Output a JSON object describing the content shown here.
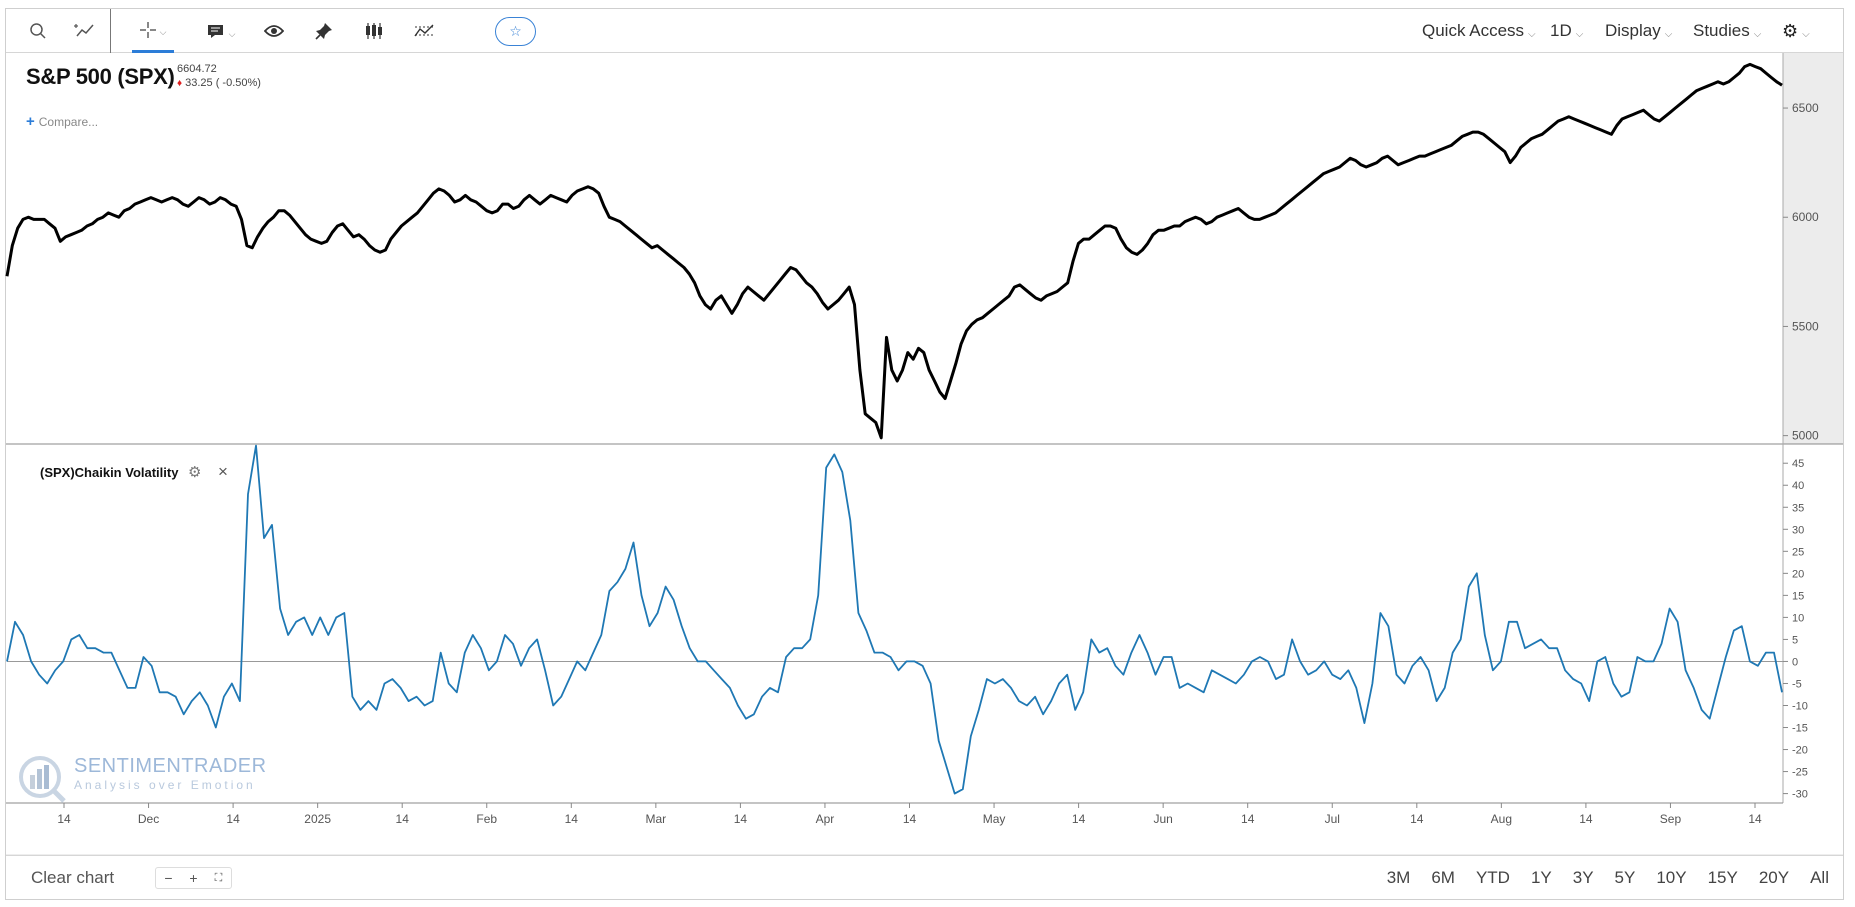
{
  "toolbar": {
    "tools": [
      {
        "name": "search-icon",
        "glyph": "⌕"
      },
      {
        "name": "draw-line-icon",
        "glyph": "⁺⁄"
      },
      {
        "name": "crosshair-icon",
        "glyph": "✛"
      },
      {
        "name": "annotation-icon",
        "glyph": "▆"
      },
      {
        "name": "eye-icon",
        "glyph": "👁"
      },
      {
        "name": "pin-icon",
        "glyph": "📌"
      },
      {
        "name": "candlestick-icon",
        "glyph": "⫼"
      },
      {
        "name": "chart-type-icon",
        "glyph": "⛶"
      }
    ],
    "star_glyph": "☆",
    "quick_access": "Quick Access",
    "interval": "1D",
    "display": "Display",
    "studies": "Studies",
    "settings_glyph": "⚙"
  },
  "header": {
    "title": "S&P 500 (SPX)",
    "price": "6604.72",
    "change": "33.25 ( -0.50%)",
    "compare": "Compare..."
  },
  "indicator": {
    "label": "(SPX)Chaikin Volatility",
    "gear_glyph": "⚙",
    "close_glyph": "×"
  },
  "logo": {
    "text": "SENTIMENTRADER",
    "tagline": "Analysis over Emotion"
  },
  "bottom": {
    "clear_chart": "Clear chart",
    "zoom_out": "−",
    "zoom_in": "+",
    "zoom_fit": "⛶",
    "ranges": [
      "3M",
      "6M",
      "YTD",
      "1Y",
      "3Y",
      "5Y",
      "10Y",
      "15Y",
      "20Y",
      "All"
    ]
  },
  "colors": {
    "price_line": "#000000",
    "indicator_line": "#1f78b4",
    "accent": "#2c7dd8",
    "down": "#e02020",
    "axis_panel": "#ececec"
  },
  "chart_data": [
    {
      "type": "line",
      "title": "S&P 500 (SPX)",
      "ylim": [
        4980,
        6720
      ],
      "yticks": [
        5000,
        5500,
        6000,
        6500
      ],
      "x_labels": [
        "14",
        "Dec",
        "14",
        "2025",
        "14",
        "Feb",
        "14",
        "Mar",
        "14",
        "Apr",
        "14",
        "May",
        "14",
        "Jun",
        "14",
        "Jul",
        "14",
        "Aug",
        "14",
        "Sep",
        "14"
      ],
      "series": [
        {
          "values": [
            5730,
            5870,
            5950,
            5990,
            6000,
            5990,
            5990,
            5990,
            5970,
            5950,
            5890,
            5910,
            5920,
            5930,
            5940,
            5960,
            5970,
            5990,
            6000,
            6020,
            6010,
            6000,
            6030,
            6040,
            6060,
            6070,
            6080,
            6090,
            6080,
            6070,
            6080,
            6090,
            6080,
            6060,
            6050,
            6070,
            6090,
            6080,
            6060,
            6070,
            6090,
            6080,
            6060,
            6050,
            5990,
            5870,
            5860,
            5910,
            5950,
            5980,
            6000,
            6030,
            6030,
            6010,
            5980,
            5950,
            5920,
            5900,
            5890,
            5880,
            5890,
            5930,
            5960,
            5970,
            5940,
            5910,
            5920,
            5900,
            5870,
            5850,
            5840,
            5850,
            5900,
            5930,
            5960,
            5980,
            6000,
            6020,
            6050,
            6080,
            6110,
            6130,
            6120,
            6100,
            6070,
            6080,
            6100,
            6080,
            6070,
            6050,
            6030,
            6020,
            6030,
            6060,
            6060,
            6040,
            6050,
            6080,
            6100,
            6080,
            6060,
            6080,
            6100,
            6090,
            6080,
            6070,
            6100,
            6120,
            6130,
            6140,
            6130,
            6110,
            6050,
            6000,
            5990,
            5980,
            5960,
            5940,
            5920,
            5900,
            5880,
            5860,
            5870,
            5850,
            5830,
            5810,
            5790,
            5770,
            5740,
            5700,
            5640,
            5600,
            5580,
            5620,
            5640,
            5600,
            5560,
            5600,
            5650,
            5680,
            5660,
            5640,
            5620,
            5650,
            5680,
            5710,
            5740,
            5770,
            5760,
            5730,
            5700,
            5680,
            5650,
            5610,
            5580,
            5600,
            5620,
            5650,
            5680,
            5600,
            5300,
            5100,
            5080,
            5060,
            4990,
            5450,
            5300,
            5250,
            5300,
            5380,
            5350,
            5400,
            5380,
            5300,
            5250,
            5200,
            5170,
            5250,
            5330,
            5420,
            5480,
            5510,
            5530,
            5540,
            5560,
            5580,
            5600,
            5620,
            5640,
            5680,
            5690,
            5670,
            5650,
            5630,
            5620,
            5640,
            5650,
            5660,
            5680,
            5700,
            5800,
            5880,
            5900,
            5900,
            5920,
            5940,
            5960,
            5960,
            5950,
            5900,
            5860,
            5840,
            5830,
            5850,
            5880,
            5920,
            5940,
            5940,
            5950,
            5960,
            5960,
            5980,
            5990,
            6000,
            5990,
            5970,
            5980,
            6000,
            6010,
            6020,
            6030,
            6040,
            6020,
            6000,
            5990,
            5990,
            6000,
            6010,
            6020,
            6040,
            6060,
            6080,
            6100,
            6120,
            6140,
            6160,
            6180,
            6200,
            6210,
            6220,
            6230,
            6250,
            6270,
            6260,
            6240,
            6230,
            6240,
            6250,
            6270,
            6280,
            6260,
            6240,
            6250,
            6260,
            6270,
            6280,
            6280,
            6290,
            6300,
            6310,
            6320,
            6330,
            6350,
            6370,
            6380,
            6390,
            6390,
            6380,
            6360,
            6340,
            6320,
            6300,
            6250,
            6280,
            6320,
            6340,
            6360,
            6370,
            6380,
            6400,
            6420,
            6440,
            6450,
            6460,
            6450,
            6440,
            6430,
            6420,
            6410,
            6400,
            6390,
            6380,
            6420,
            6450,
            6460,
            6470,
            6480,
            6490,
            6470,
            6450,
            6440,
            6460,
            6480,
            6500,
            6520,
            6540,
            6560,
            6580,
            6590,
            6600,
            6610,
            6620,
            6610,
            6620,
            6640,
            6660,
            6690,
            6700,
            6690,
            6680,
            6660,
            6640,
            6620,
            6604.72
          ]
        }
      ]
    },
    {
      "type": "line",
      "title": "(SPX)Chaikin Volatility",
      "ylim": [
        -31,
        48
      ],
      "yticks": [
        -30,
        -25,
        -20,
        -15,
        -10,
        -5,
        0,
        5,
        10,
        15,
        20,
        25,
        30,
        35,
        40,
        45
      ],
      "series": [
        {
          "values": [
            0,
            9,
            6,
            0,
            -3,
            -5,
            -2,
            0,
            5,
            6,
            3,
            3,
            2,
            2,
            -2,
            -6,
            -6,
            1,
            -1,
            -7,
            -7,
            -8,
            -12,
            -9,
            -7,
            -10,
            -15,
            -8,
            -5,
            -9,
            38,
            49,
            28,
            31,
            12,
            6,
            9,
            10,
            6,
            10,
            6,
            10,
            11,
            -8,
            -11,
            -9,
            -11,
            -5,
            -4,
            -6,
            -9,
            -8,
            -10,
            -9,
            2,
            -5,
            -7,
            2,
            6,
            3,
            -2,
            0,
            6,
            4,
            -1,
            3,
            5,
            -2,
            -10,
            -8,
            -4,
            0,
            -2,
            2,
            6,
            16,
            18,
            21,
            27,
            15,
            8,
            11,
            17,
            14,
            8,
            3,
            0,
            0,
            -2,
            -4,
            -6,
            -10,
            -13,
            -12,
            -8,
            -6,
            -7,
            1,
            3,
            3,
            5,
            15,
            44,
            47,
            43,
            32,
            11,
            7,
            2,
            2,
            1,
            -2,
            0,
            0,
            -1,
            -5,
            -18,
            -24,
            -30,
            -29,
            -17,
            -11,
            -4,
            -5,
            -4,
            -6,
            -9,
            -10,
            -8,
            -12,
            -9,
            -5,
            -3,
            -11,
            -7,
            5,
            2,
            3,
            -1,
            -3,
            2,
            6,
            2,
            -3,
            1,
            1,
            -6,
            -5,
            -6,
            -7,
            -2,
            -3,
            -4,
            -5,
            -3,
            0,
            1,
            0,
            -4,
            -3,
            5,
            0,
            -3,
            -2,
            0,
            -3,
            -4,
            -2,
            -6,
            -14,
            -5,
            11,
            8,
            -3,
            -5,
            -1,
            1,
            -2,
            -9,
            -6,
            2,
            5,
            17,
            20,
            6,
            -2,
            0,
            9,
            9,
            3,
            4,
            5,
            3,
            3,
            -2,
            -4,
            -5,
            -9,
            0,
            1,
            -5,
            -8,
            -7,
            1,
            0,
            0,
            4,
            12,
            9,
            -2,
            -6,
            -11,
            -13,
            -6,
            1,
            7,
            8,
            0,
            -1,
            2,
            2,
            -7
          ]
        }
      ]
    }
  ]
}
